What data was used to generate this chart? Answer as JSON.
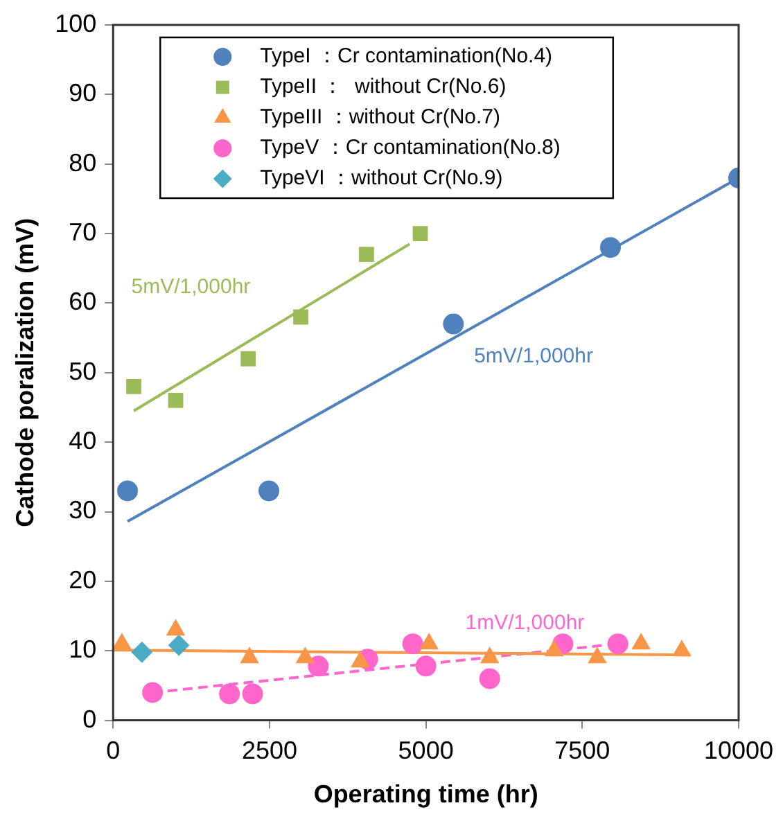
{
  "chart_data": {
    "type": "scatter",
    "xlabel": "Operating time (hr)",
    "ylabel": "Cathode poralization (mV)",
    "xlim": [
      0,
      10000
    ],
    "xticks": [
      0,
      2500,
      5000,
      7500,
      10000
    ],
    "ylim": [
      0,
      100
    ],
    "yticks": [
      0,
      10,
      20,
      30,
      40,
      50,
      60,
      70,
      80,
      90,
      100
    ],
    "grid": false,
    "legend": "top",
    "line_style": "solid",
    "series": [
      {
        "name": "TypeI ：Cr contamination(No.4)",
        "color": "#4f81bd",
        "marker": "circle",
        "x": [
          230,
          2490,
          5440,
          7950,
          10000
        ],
        "values": [
          33,
          33,
          57,
          68,
          78
        ]
      },
      {
        "name": "TypeII ：  without Cr(No.6)",
        "color": "#9bbb59",
        "marker": "square",
        "x": [
          330,
          1000,
          2160,
          3000,
          4050,
          4910
        ],
        "values": [
          48,
          46,
          52,
          58,
          67,
          70
        ]
      },
      {
        "name": "TypeIII ：without Cr(No.7)",
        "color": "#f79646",
        "marker": "triangle",
        "x": [
          140,
          1000,
          2180,
          3070,
          3950,
          5050,
          6020,
          7050,
          7740,
          8440,
          9090
        ],
        "values": [
          11,
          13,
          9,
          9,
          8.4,
          11,
          9,
          10,
          9,
          11,
          10
        ]
      },
      {
        "name": "TypeV ：Cr contamination(No.8)",
        "color": "#ff66cc",
        "marker": "circle",
        "x": [
          630,
          1860,
          2230,
          3280,
          4070,
          4790,
          5000,
          6020,
          7190,
          8070
        ],
        "values": [
          4,
          3.8,
          3.8,
          7.8,
          8.8,
          11,
          7.8,
          6,
          11,
          11
        ]
      },
      {
        "name": "TypeVI ：without Cr(No.9)",
        "color": "#4bacc6",
        "marker": "diamond",
        "x": [
          460,
          1050
        ],
        "values": [
          9.8,
          10.8
        ]
      },
      {
        "type": "line",
        "name": "5mV/1,000hr",
        "color": "#4f81bd",
        "marker": "none",
        "x": [
          230,
          10000
        ],
        "values": [
          28.6,
          78
        ]
      },
      {
        "type": "line",
        "name": "5mV/1,000hr",
        "color": "#9bbb59",
        "marker": "none",
        "x": [
          330,
          4740
        ],
        "values": [
          44.5,
          68.5
        ]
      },
      {
        "type": "line",
        "color": "#f79646",
        "marker": "none",
        "x": [
          0,
          9230
        ],
        "values": [
          10.1,
          9.4
        ]
      },
      {
        "type": "line",
        "name": "1mV/1,000hr",
        "color": "#ff66cc",
        "marker": "none",
        "line_style": "dashed",
        "x": [
          630,
          8070
        ],
        "values": [
          4,
          11
        ]
      }
    ]
  }
}
